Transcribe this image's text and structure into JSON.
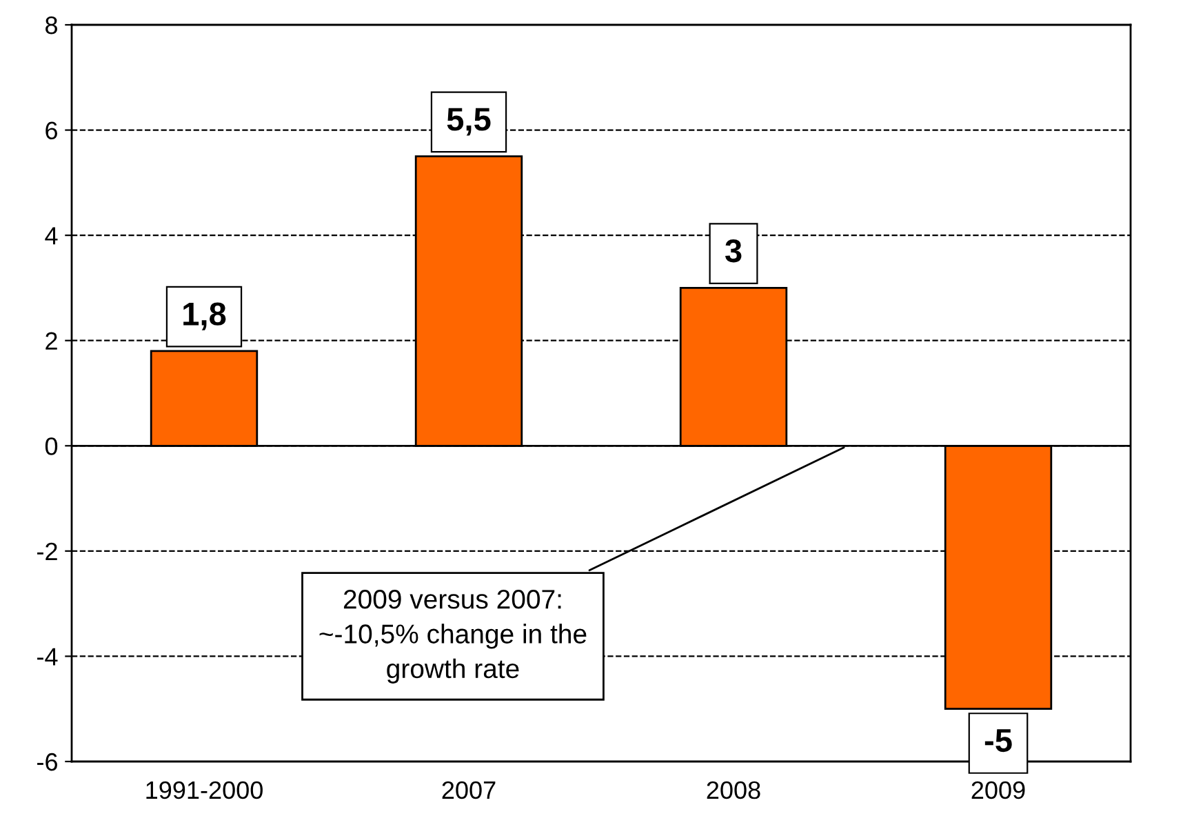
{
  "chart_data": {
    "type": "bar",
    "categories": [
      "1991-2000",
      "2007",
      "2008",
      "2009"
    ],
    "values": [
      1.8,
      5.5,
      3,
      -5
    ],
    "color": "#ff6600",
    "value_labels": [
      "1,8",
      "5,5",
      "3",
      "-5"
    ],
    "ylim": [
      -6,
      8
    ],
    "yticks": [
      -6,
      -4,
      -2,
      0,
      2,
      4,
      6,
      8
    ],
    "grid": "y",
    "annotations": [
      "2009 versus 2007:\n~-10,5% change in the\ngrowth rate"
    ]
  }
}
